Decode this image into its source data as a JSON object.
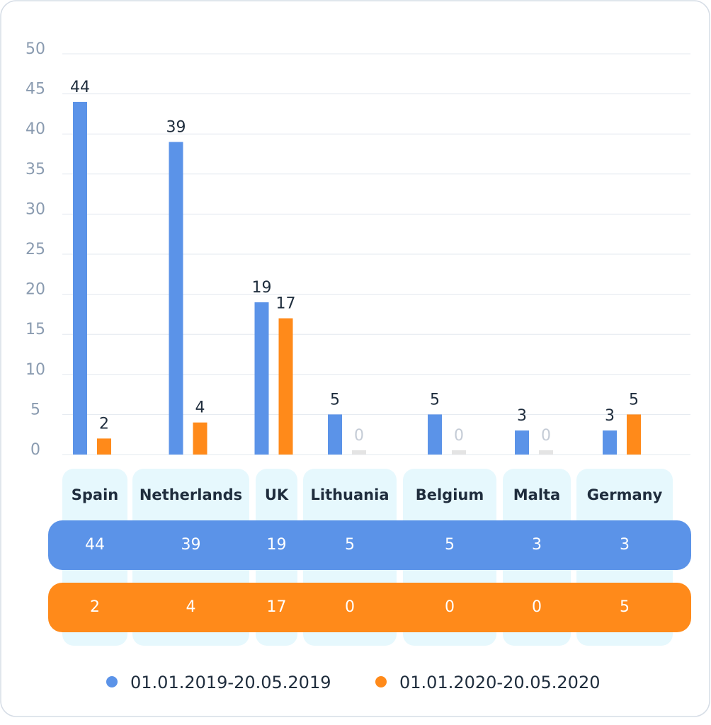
{
  "chart_data": {
    "type": "bar",
    "categories": [
      "Spain",
      "Netherlands",
      "UK",
      "Lithuania",
      "Belgium",
      "Malta",
      "Germany"
    ],
    "series": [
      {
        "name": "01.01.2019-20.05.2019",
        "color": "#5b93e8",
        "values": [
          44,
          39,
          19,
          5,
          5,
          3,
          3
        ]
      },
      {
        "name": "01.01.2020-20.05.2020",
        "color": "#ff8a1a",
        "values": [
          2,
          4,
          17,
          0,
          0,
          0,
          5
        ]
      }
    ],
    "ylim": [
      0,
      50
    ],
    "yticks": [
      0,
      5,
      10,
      15,
      20,
      25,
      30,
      35,
      40,
      45,
      50
    ],
    "grid": true
  }
}
